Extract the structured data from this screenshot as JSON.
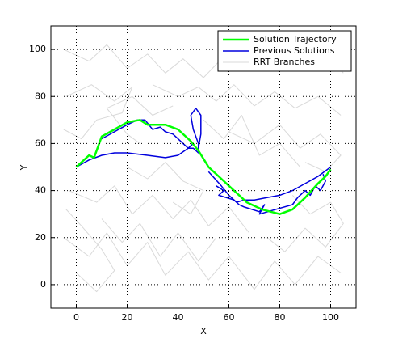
{
  "chart_data": {
    "type": "line",
    "xlabel": "X",
    "ylabel": "Y",
    "xlim": [
      -10,
      110
    ],
    "ylim": [
      -10,
      110
    ],
    "xticks": [
      0,
      20,
      40,
      60,
      80,
      100
    ],
    "yticks": [
      0,
      20,
      40,
      60,
      80,
      100
    ],
    "grid": true,
    "legend": "northeast",
    "series": [
      {
        "name": "Solution Trajectory",
        "color": "#00ff00",
        "width": 2.5,
        "x": [
          0,
          3,
          5,
          7,
          10,
          15,
          20,
          25,
          28,
          35,
          40,
          45,
          48,
          52,
          57,
          62,
          67,
          73,
          80,
          85,
          90,
          95,
          98,
          100
        ],
        "values": [
          50,
          53,
          55,
          54,
          63,
          66,
          69,
          70,
          68,
          68,
          66,
          61,
          57,
          50,
          45,
          40,
          35,
          32,
          30,
          32,
          37,
          43,
          46,
          49
        ]
      },
      {
        "name": "Previous Solutions",
        "color": "#0000dd",
        "width": 1.5,
        "x": [
          0,
          5,
          10,
          15,
          20,
          28,
          35,
          40,
          44,
          46,
          null,
          10,
          15,
          20,
          24,
          27,
          30,
          33,
          35,
          38,
          40,
          42,
          44,
          46,
          48,
          48,
          46,
          45,
          47,
          49,
          49,
          48,
          null,
          52,
          57,
          60,
          63,
          66,
          70,
          75,
          80,
          85,
          90,
          95,
          100,
          null,
          55,
          58,
          56,
          62,
          64,
          66,
          72,
          74,
          72,
          85,
          87,
          90,
          92,
          94,
          96,
          98,
          97
        ],
        "values": [
          50,
          53,
          55,
          56,
          56,
          55,
          54,
          55,
          58,
          60,
          null,
          62,
          65,
          68,
          70,
          70,
          66,
          67,
          65,
          64,
          62,
          60,
          58,
          58,
          56,
          60,
          66,
          72,
          75,
          72,
          64,
          58,
          null,
          48,
          42,
          38,
          35,
          36,
          36,
          37,
          38,
          40,
          43,
          46,
          50,
          null,
          42,
          40,
          38,
          36,
          34,
          33,
          31,
          34,
          30,
          34,
          37,
          40,
          38,
          42,
          40,
          44,
          47
        ]
      },
      {
        "name": "RRT Branches",
        "color": "#d9d9d9",
        "width": 1,
        "x": [
          -5,
          5,
          12,
          20,
          28,
          35,
          42,
          50,
          58,
          66,
          75,
          84,
          92,
          100,
          105,
          null,
          -4,
          6,
          15,
          22,
          18,
          8,
          2,
          -5,
          null,
          30,
          40,
          48,
          55,
          62,
          70,
          78,
          86,
          95,
          104,
          null,
          60,
          70,
          80,
          88,
          96,
          104,
          98,
          90,
          null,
          -3,
          8,
          15,
          22,
          30,
          38,
          45,
          52,
          60,
          68,
          null,
          -5,
          5,
          12,
          20,
          28,
          35,
          44,
          52,
          60,
          70,
          78,
          86,
          95,
          104,
          null,
          10,
          18,
          25,
          33,
          40,
          48,
          55,
          null,
          75,
          82,
          90,
          98,
          105,
          100,
          92,
          85,
          null,
          20,
          28,
          35,
          42,
          50,
          45,
          38,
          null,
          50,
          58,
          65,
          72,
          80,
          88,
          null,
          0,
          8,
          15,
          10,
          2,
          -4,
          null,
          25,
          20,
          12,
          22,
          30,
          38
        ],
        "values": [
          100,
          95,
          102,
          92,
          98,
          90,
          96,
          88,
          97,
          92,
          100,
          94,
          101,
          95,
          90,
          null,
          80,
          85,
          78,
          84,
          73,
          70,
          62,
          66,
          null,
          85,
          80,
          84,
          78,
          85,
          76,
          82,
          75,
          80,
          72,
          null,
          65,
          60,
          68,
          58,
          64,
          55,
          48,
          52,
          null,
          40,
          35,
          42,
          30,
          38,
          28,
          36,
          25,
          33,
          22,
          null,
          20,
          12,
          22,
          8,
          18,
          4,
          14,
          2,
          12,
          -2,
          10,
          0,
          12,
          5,
          null,
          28,
          18,
          26,
          12,
          22,
          10,
          20,
          null,
          20,
          14,
          24,
          16,
          26,
          35,
          30,
          38,
          null,
          50,
          45,
          52,
          44,
          40,
          30,
          35,
          null,
          70,
          62,
          72,
          55,
          60,
          50,
          null,
          5,
          -3,
          6,
          15,
          25,
          32,
          null,
          60,
          64,
          75,
          80,
          72,
          76
        ]
      }
    ]
  }
}
